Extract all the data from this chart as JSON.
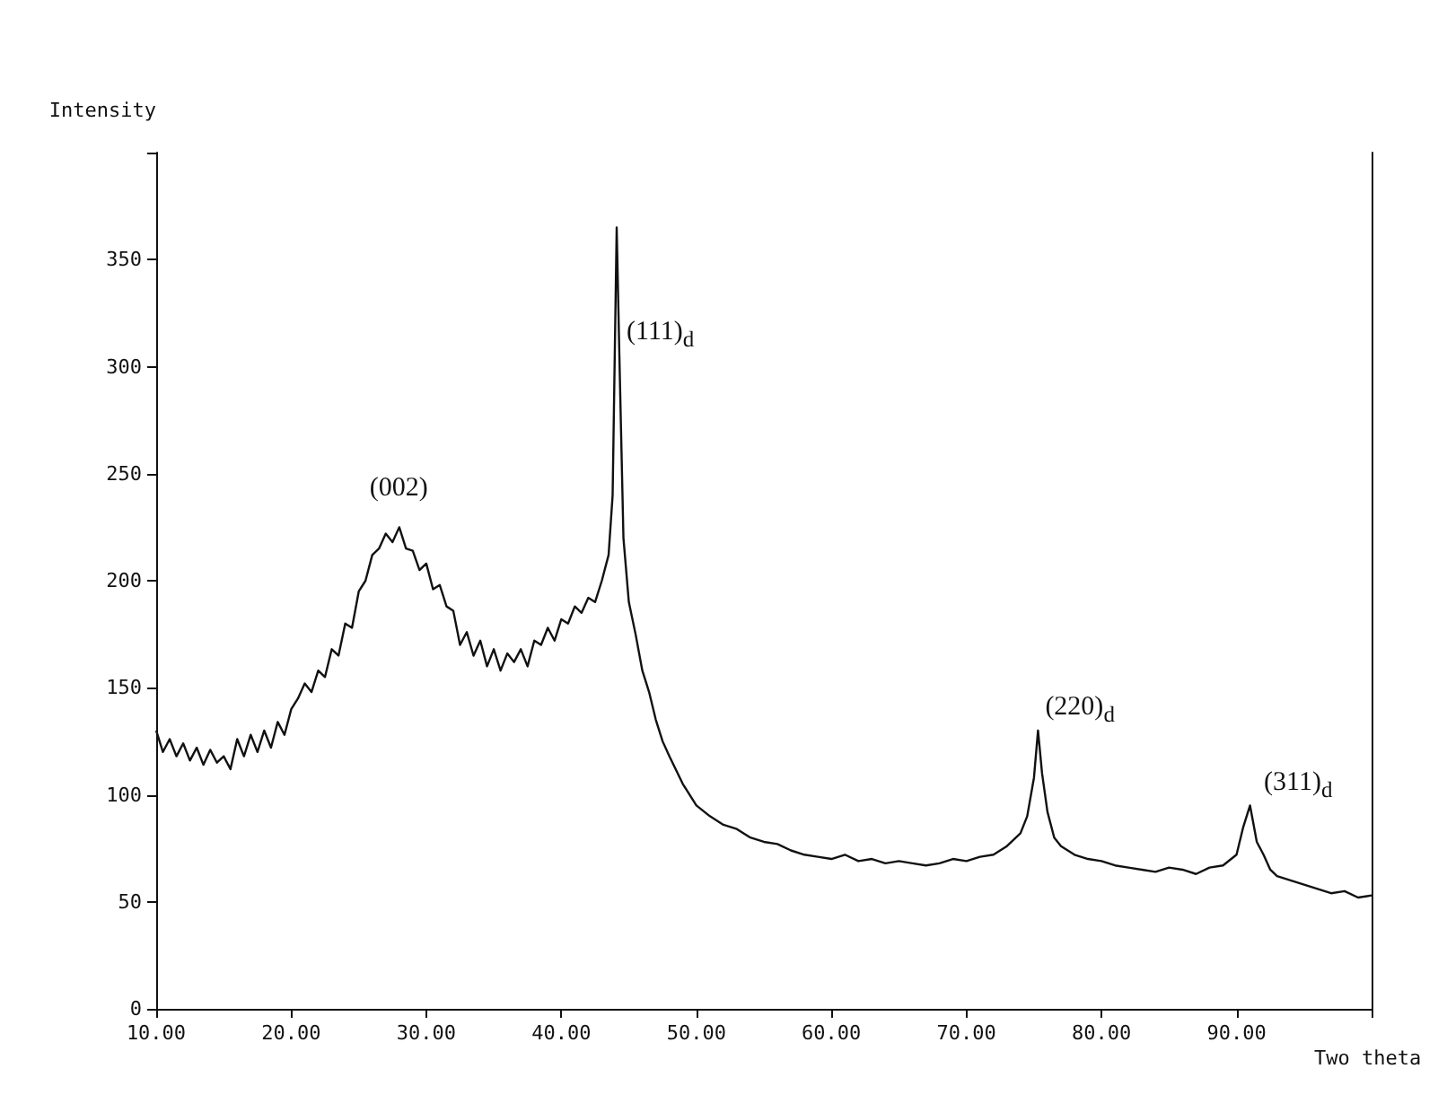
{
  "chart_data": {
    "type": "line",
    "xlabel": "Two theta",
    "ylabel": "Intensity",
    "xlim": [
      10,
      100
    ],
    "xticks": [
      {
        "value": 10,
        "label": "10.00"
      },
      {
        "value": 20,
        "label": "20.00"
      },
      {
        "value": 30,
        "label": "30.00"
      },
      {
        "value": 40,
        "label": "40.00"
      },
      {
        "value": 50,
        "label": "50.00"
      },
      {
        "value": 60,
        "label": "60.00"
      },
      {
        "value": 70,
        "label": "70.00"
      },
      {
        "value": 80,
        "label": "80.00"
      },
      {
        "value": 90,
        "label": "90.00"
      },
      {
        "value": 100,
        "label": null
      }
    ],
    "ylim": [
      0,
      400
    ],
    "yticks": [
      0,
      50,
      100,
      150,
      200,
      250,
      300,
      350,
      {
        "value": 400,
        "label": null
      }
    ],
    "grid": false,
    "marker": "none",
    "line_style": "solid",
    "series": [
      {
        "color": "#111111",
        "x": [
          10,
          10.5,
          11,
          11.5,
          12,
          12.5,
          13,
          13.5,
          14,
          14.5,
          15,
          15.5,
          16,
          16.5,
          17,
          17.5,
          18,
          18.5,
          19,
          19.5,
          20,
          20.5,
          21,
          21.5,
          22,
          22.5,
          23,
          23.5,
          24,
          24.5,
          25,
          25.5,
          26,
          26.5,
          27,
          27.5,
          28,
          28.5,
          29,
          29.5,
          30,
          30.5,
          31,
          31.5,
          32,
          32.5,
          33,
          33.5,
          34,
          34.5,
          35,
          35.5,
          36,
          36.5,
          37,
          37.5,
          38,
          38.5,
          39,
          39.5,
          40,
          40.5,
          41,
          41.5,
          42,
          42.5,
          43,
          43.5,
          43.8,
          44.1,
          44.3,
          44.6,
          45,
          45.5,
          46,
          46.5,
          47,
          47.5,
          48,
          49,
          50,
          51,
          52,
          53,
          54,
          55,
          56,
          57,
          58,
          59,
          60,
          61,
          62,
          63,
          64,
          65,
          66,
          67,
          68,
          69,
          70,
          71,
          72,
          73,
          74,
          74.5,
          75,
          75.3,
          75.6,
          76,
          76.5,
          77,
          78,
          79,
          80,
          81,
          82,
          83,
          84,
          85,
          86,
          87,
          88,
          89,
          90,
          90.5,
          91,
          91.5,
          92,
          92.5,
          93,
          94,
          95,
          96,
          97,
          98,
          99,
          100
        ],
        "values": [
          130,
          120,
          126,
          118,
          124,
          116,
          122,
          114,
          121,
          115,
          118,
          112,
          126,
          118,
          128,
          120,
          130,
          122,
          134,
          128,
          140,
          145,
          152,
          148,
          158,
          155,
          168,
          165,
          180,
          178,
          195,
          200,
          212,
          215,
          222,
          218,
          225,
          215,
          214,
          205,
          208,
          196,
          198,
          188,
          186,
          170,
          176,
          165,
          172,
          160,
          168,
          158,
          166,
          162,
          168,
          160,
          172,
          170,
          178,
          172,
          182,
          180,
          188,
          185,
          192,
          190,
          200,
          212,
          240,
          365,
          305,
          220,
          190,
          175,
          158,
          148,
          135,
          125,
          118,
          105,
          95,
          90,
          86,
          84,
          80,
          78,
          77,
          74,
          72,
          71,
          70,
          72,
          69,
          70,
          68,
          69,
          68,
          67,
          68,
          70,
          69,
          71,
          72,
          76,
          82,
          90,
          108,
          130,
          110,
          92,
          80,
          76,
          72,
          70,
          69,
          67,
          66,
          65,
          64,
          66,
          65,
          63,
          66,
          67,
          72,
          85,
          95,
          78,
          72,
          65,
          62,
          60,
          58,
          56,
          54,
          55,
          52,
          53
        ]
      }
    ],
    "annotations": [
      {
        "text": "(002)",
        "x": 28,
        "y": 225
      },
      {
        "text": "(111)$_{d}$",
        "x": 44.3,
        "y": 305
      },
      {
        "text": "(220)$_{d}$",
        "x": 75.3,
        "y": 130
      },
      {
        "text": "(311)$_{d}$",
        "x": 91.5,
        "y": 95
      }
    ]
  }
}
